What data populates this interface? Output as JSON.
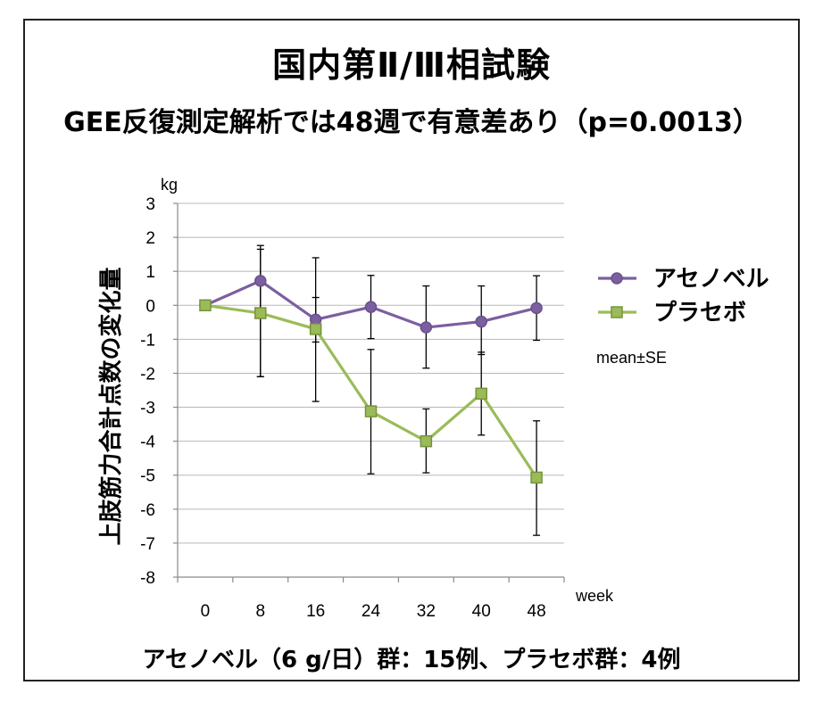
{
  "header": {
    "title": "国内第Ⅱ/Ⅲ相試験",
    "subtitle": "GEE反復測定解析では48週で有意差あり（p=0.0013）"
  },
  "footer": {
    "note": "アセノベル（6 g/日）群：15例、プラセボ群：4例"
  },
  "chart_data": {
    "type": "line",
    "title": "国内第Ⅱ/Ⅲ相試験",
    "ylabel": "上肢筋力合計点数の変化量",
    "yunit": "kg",
    "xlabel": "week",
    "annotation": "mean±SE",
    "categories": [
      "0",
      "8",
      "16",
      "24",
      "32",
      "40",
      "48"
    ],
    "ylim": [
      -8,
      3
    ],
    "yticks": [
      "3",
      "2",
      "1",
      "0",
      "-1",
      "-2",
      "-3",
      "-4",
      "-5",
      "-6",
      "-7",
      "-8"
    ],
    "grid": true,
    "legend_position": "right",
    "series": [
      {
        "name": "アセノベル",
        "marker": "circle",
        "color": "#6b4f8e",
        "fill": "#7b5fa0",
        "values": [
          0,
          0.72,
          -0.42,
          -0.05,
          -0.65,
          -0.48,
          -0.08
        ],
        "err_low": [
          null,
          -2.1,
          -1.08,
          -0.98,
          -1.85,
          -1.45,
          -1.03
        ],
        "err_high": [
          null,
          1.76,
          0.23,
          0.88,
          0.57,
          0.57,
          0.87
        ]
      },
      {
        "name": "プラセボ",
        "marker": "square",
        "color": "#77933c",
        "fill": "#9bbb59",
        "values": [
          0,
          -0.23,
          -0.7,
          -3.12,
          -4.0,
          -2.6,
          -5.07
        ],
        "err_low": [
          null,
          -2.1,
          -2.83,
          -4.96,
          -4.93,
          -3.82,
          -6.77
        ],
        "err_high": [
          null,
          1.65,
          1.4,
          -1.3,
          -3.05,
          -1.38,
          -3.4
        ]
      }
    ]
  }
}
